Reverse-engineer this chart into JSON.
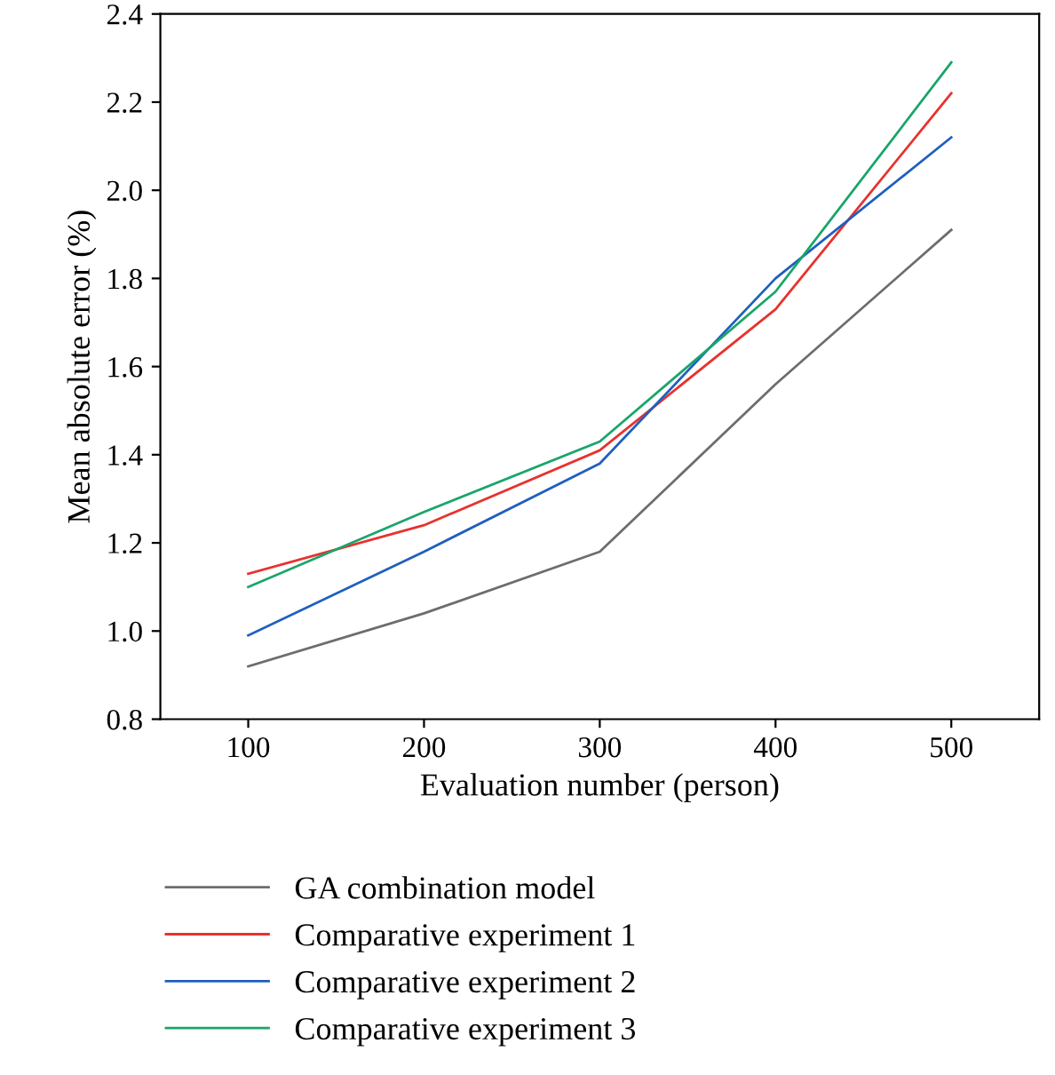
{
  "chart_data": {
    "type": "line",
    "xlabel": "Evaluation number (person)",
    "ylabel": "Mean absolute error (%)",
    "x": [
      100,
      200,
      300,
      400,
      500
    ],
    "series": [
      {
        "name": "GA combination model",
        "color": "#6d6d6d",
        "values": [
          0.92,
          1.04,
          1.18,
          1.56,
          1.91
        ]
      },
      {
        "name": "Comparative experiment 1",
        "color": "#e8322d",
        "values": [
          1.13,
          1.24,
          1.41,
          1.73,
          2.22
        ]
      },
      {
        "name": "Comparative experiment 2",
        "color": "#1f5fbf",
        "values": [
          0.99,
          1.18,
          1.38,
          1.8,
          2.12
        ]
      },
      {
        "name": "Comparative experiment 3",
        "color": "#1aa56a",
        "values": [
          1.1,
          1.27,
          1.43,
          1.77,
          2.29
        ]
      }
    ],
    "xlim": [
      50,
      550
    ],
    "xticks": [
      100,
      200,
      300,
      400,
      500
    ],
    "ylim": [
      0.8,
      2.4
    ],
    "yticks": [
      {
        "value": 0.8,
        "label": "0.8"
      },
      {
        "value": 1.0,
        "label": "1.0"
      },
      {
        "value": 1.2,
        "label": "1.2"
      },
      {
        "value": 1.4,
        "label": "1.4"
      },
      {
        "value": 1.6,
        "label": "1.6"
      },
      {
        "value": 1.8,
        "label": "1.8"
      },
      {
        "value": 2.0,
        "label": "2.0"
      },
      {
        "value": 2.2,
        "label": "2.2"
      },
      {
        "value": 2.4,
        "label": "2.4"
      }
    ],
    "legend": "bottom",
    "grid": false,
    "marker": "none",
    "line_style": "solid"
  }
}
